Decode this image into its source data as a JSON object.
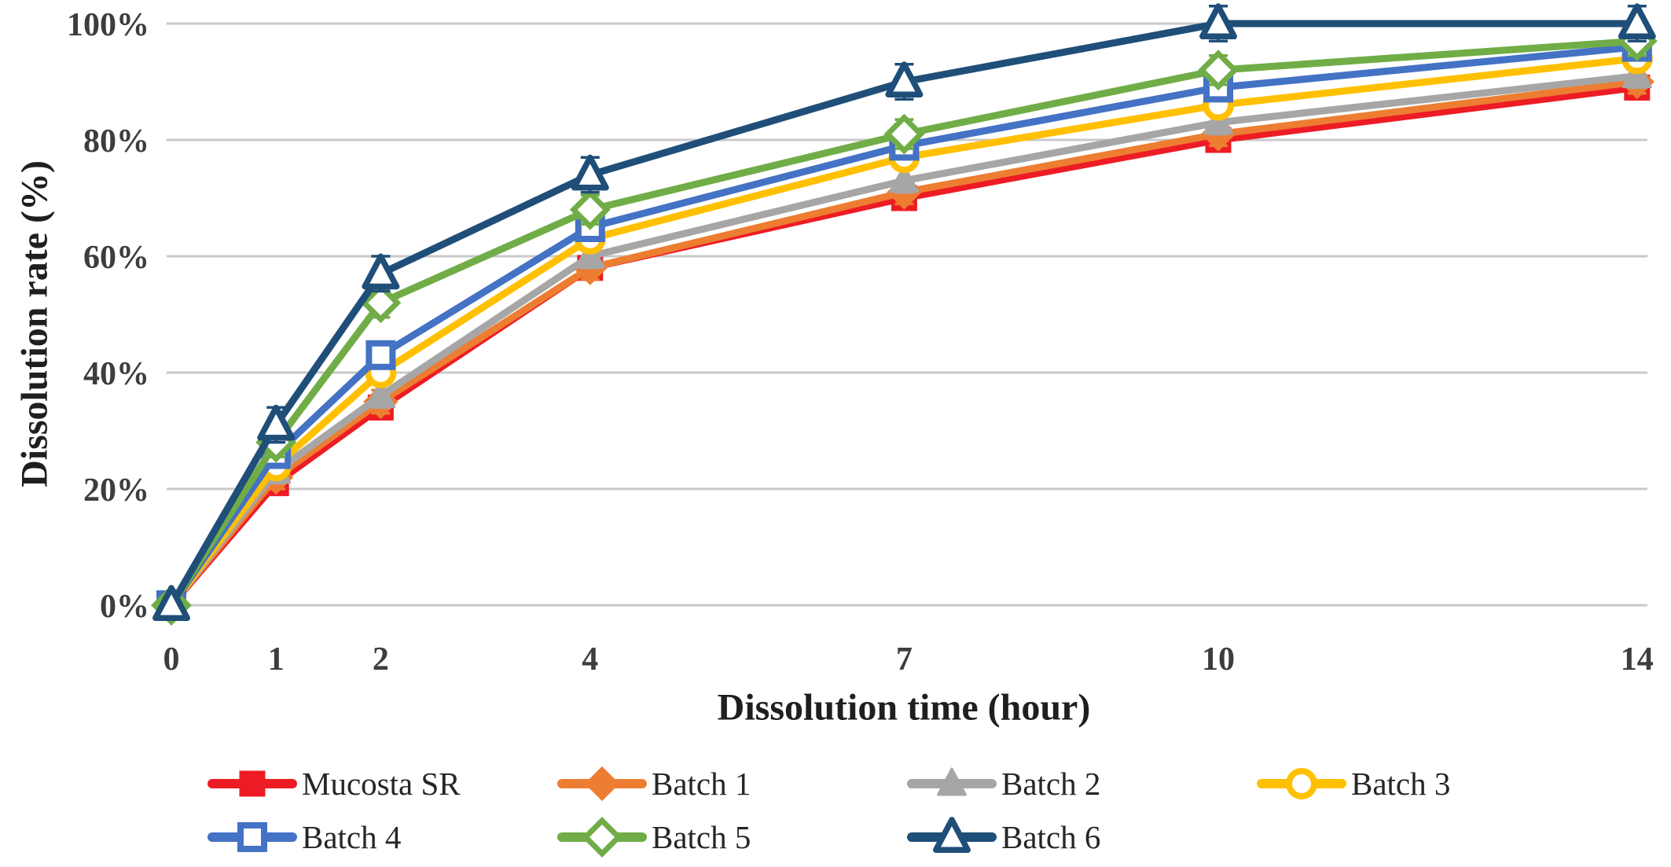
{
  "chart_data": {
    "type": "line",
    "title": "",
    "xlabel": "Dissolution time (hour)",
    "ylabel": "Dissolution rate (%)",
    "x": [
      0,
      1,
      2,
      4,
      7,
      10,
      14
    ],
    "x_tick_labels": [
      "0",
      "1",
      "2",
      "4",
      "7",
      "10",
      "14"
    ],
    "y_ticks": [
      0,
      20,
      40,
      60,
      80,
      100
    ],
    "y_tick_suffix": "%",
    "xlim": [
      0,
      14.3
    ],
    "ylim": [
      0,
      100
    ],
    "grid": "horizontal",
    "gridline_color": "#c9c9c9",
    "background": "#ffffff",
    "legend_position": "bottom",
    "error_bars": true,
    "series": [
      {
        "name": "Mucosta SR",
        "color": "#ED1C24",
        "marker": "square",
        "fill": "solid",
        "values": [
          0,
          21,
          34,
          58,
          70,
          80,
          89
        ],
        "error_pct": 2.0
      },
      {
        "name": "Batch 1",
        "color": "#ED7D31",
        "marker": "diamond",
        "fill": "solid",
        "values": [
          0,
          22,
          35,
          58,
          71,
          81,
          90
        ],
        "error_pct": 2.0
      },
      {
        "name": "Batch 2",
        "color": "#A6A6A6",
        "marker": "triangle",
        "fill": "solid",
        "values": [
          0,
          23,
          36,
          60,
          73,
          83,
          91
        ],
        "error_pct": 2.0
      },
      {
        "name": "Batch 3",
        "color": "#FFC000",
        "marker": "circle",
        "fill": "open",
        "values": [
          0,
          24,
          40,
          63,
          77,
          86,
          94
        ],
        "error_pct": 2.0
      },
      {
        "name": "Batch 4",
        "color": "#4472C4",
        "marker": "square",
        "fill": "open",
        "values": [
          0,
          26,
          43,
          65,
          79,
          89,
          96
        ],
        "error_pct": 2.0
      },
      {
        "name": "Batch 5",
        "color": "#70AD47",
        "marker": "diamond",
        "fill": "open",
        "values": [
          0,
          28,
          52,
          68,
          81,
          92,
          97
        ],
        "error_pct": 2.5
      },
      {
        "name": "Batch 6",
        "color": "#1F4E79",
        "marker": "triangle",
        "fill": "open",
        "values": [
          0,
          31,
          57,
          74,
          90,
          100,
          100
        ],
        "error_pct": 3.0
      }
    ]
  }
}
